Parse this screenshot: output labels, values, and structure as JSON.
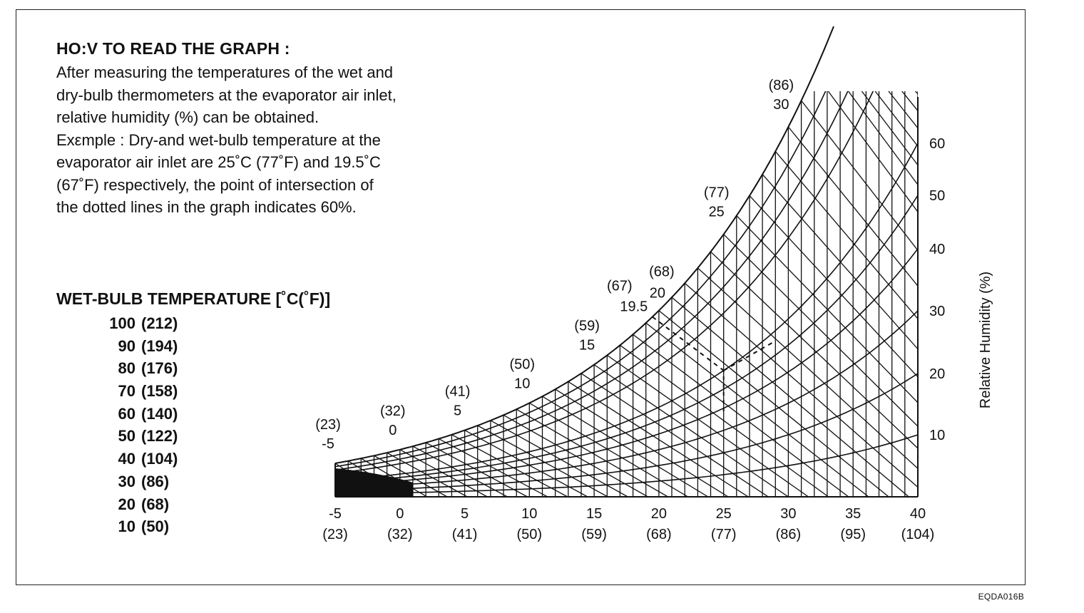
{
  "howto": {
    "title": "HO:V TO READ THE GRAPH :",
    "lines": [
      "After measuring the temperatures of the wet and",
      "dry-bulb thermometers at the evaporator air inlet,",
      "relative humidity (%) can be obtained.",
      "Exεmple : Dry-and wet-bulb temperature at the",
      "evaporator air inlet are 25˚C (77˚F) and 19.5˚C",
      "(67˚F) respectively, the point of intersection of",
      "the dotted lines in the graph indicates 60%."
    ]
  },
  "wet_bulb_table": {
    "title": "WET-BULB TEMPERATURE [˚C(˚F)]",
    "rows": [
      {
        "c": "100",
        "f": "(212)"
      },
      {
        "c": "90",
        "f": "(194)"
      },
      {
        "c": "80",
        "f": "(176)"
      },
      {
        "c": "70",
        "f": "(158)"
      },
      {
        "c": "60",
        "f": "(140)"
      },
      {
        "c": "50",
        "f": "(122)"
      },
      {
        "c": "40",
        "f": "(104)"
      },
      {
        "c": "30",
        "f": "(86)"
      },
      {
        "c": "20",
        "f": "(68)"
      },
      {
        "c": "10",
        "f": "(50)"
      }
    ]
  },
  "figure_code": "EQDA016B",
  "chart_data": {
    "type": "line",
    "xlabel": "",
    "ylabel": "Relative Humidity (%)",
    "xlim": [
      -5,
      40
    ],
    "x_ticks": [
      {
        "c": "-5",
        "f": "(23)",
        "v": -5
      },
      {
        "c": "0",
        "f": "(32)",
        "v": 0
      },
      {
        "c": "5",
        "f": "(41)",
        "v": 5
      },
      {
        "c": "10",
        "f": "(50)",
        "v": 10
      },
      {
        "c": "15",
        "f": "(59)",
        "v": 15
      },
      {
        "c": "20",
        "f": "(68)",
        "v": 20
      },
      {
        "c": "25",
        "f": "(77)",
        "v": 25
      },
      {
        "c": "30",
        "f": "(86)",
        "v": 30
      },
      {
        "c": "35",
        "f": "(95)",
        "v": 35
      },
      {
        "c": "40",
        "f": "(104)",
        "v": 40
      }
    ],
    "y_ticks": [
      "10",
      "20",
      "30",
      "40",
      "50",
      "60"
    ],
    "saturation_labels": [
      {
        "c": "-5",
        "f": "(23)",
        "v": -5
      },
      {
        "c": "0",
        "f": "(32)",
        "v": 0
      },
      {
        "c": "5",
        "f": "(41)",
        "v": 5
      },
      {
        "c": "10",
        "f": "(50)",
        "v": 10
      },
      {
        "c": "15",
        "f": "(59)",
        "v": 15
      },
      {
        "c": "19.5",
        "f": "(67)",
        "v": 19.5
      },
      {
        "c": "20",
        "f": "(68)",
        "v": 20
      },
      {
        "c": "25",
        "f": "(77)",
        "v": 25
      },
      {
        "c": "30",
        "f": "(86)",
        "v": 30
      }
    ],
    "example": {
      "dry_bulb_c": 25,
      "wet_bulb_c": 19.5,
      "relative_humidity_pct": 60
    },
    "grid": true
  }
}
